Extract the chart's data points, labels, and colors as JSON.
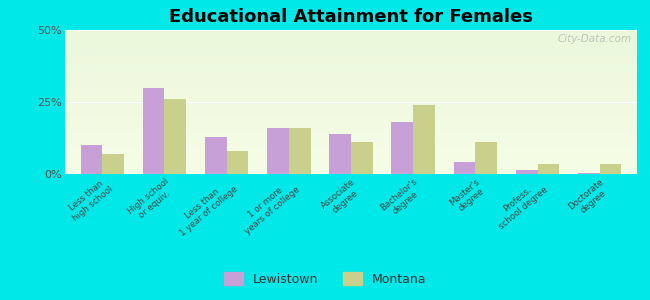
{
  "title": "Educational Attainment for Females",
  "categories": [
    "Less than\nhigh school",
    "High school\nor equiv.",
    "Less than\n1 year of college",
    "1 or more\nyears of college",
    "Associate\ndegree",
    "Bachelor's\ndegree",
    "Master's\ndegree",
    "Profess.\nschool degree",
    "Doctorate\ndegree"
  ],
  "lewistown": [
    10,
    30,
    13,
    16,
    14,
    18,
    4,
    1.5,
    0.5
  ],
  "montana": [
    7,
    26,
    8,
    16,
    11,
    24,
    11,
    3.5,
    3.5
  ],
  "lewistown_color": "#c8a0d8",
  "montana_color": "#c8d08c",
  "ylim": [
    0,
    50
  ],
  "yticks": [
    0,
    25,
    50
  ],
  "ytick_labels": [
    "0%",
    "25%",
    "50%"
  ],
  "outer_color": "#00e8e8",
  "watermark": "City-Data.com",
  "legend_lewistown": "Lewistown",
  "legend_montana": "Montana"
}
